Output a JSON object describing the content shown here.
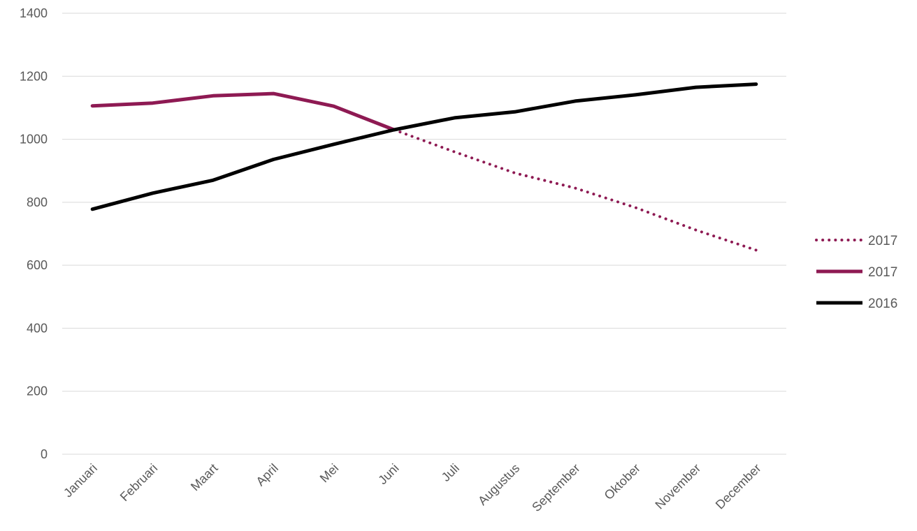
{
  "chart_data": {
    "type": "line",
    "title": "",
    "xlabel": "",
    "ylabel": "",
    "categories": [
      "Januari",
      "Februari",
      "Maart",
      "April",
      "Mei",
      "Juni",
      "Juli",
      "Augustus",
      "September",
      "Oktober",
      "November",
      "December"
    ],
    "ylim": [
      0,
      1400
    ],
    "yticks": [
      "0",
      "200",
      "400",
      "600",
      "800",
      "1000",
      "1200",
      "1400"
    ],
    "grid": true,
    "legend_position": "right",
    "series": [
      {
        "name": "2017",
        "style": "dotted",
        "color": "#8e1a53",
        "values": [
          null,
          null,
          null,
          null,
          null,
          1030,
          960,
          893,
          845,
          783,
          712,
          648
        ]
      },
      {
        "name": "2017",
        "style": "solid",
        "color": "#8e1a53",
        "values": [
          1106,
          1115,
          1138,
          1145,
          1105,
          1030,
          null,
          null,
          null,
          null,
          null,
          null
        ]
      },
      {
        "name": "2016",
        "style": "solid",
        "color": "#000000",
        "values": [
          778,
          829,
          870,
          936,
          984,
          1030,
          1068,
          1087,
          1121,
          1141,
          1165,
          1175
        ]
      }
    ]
  }
}
